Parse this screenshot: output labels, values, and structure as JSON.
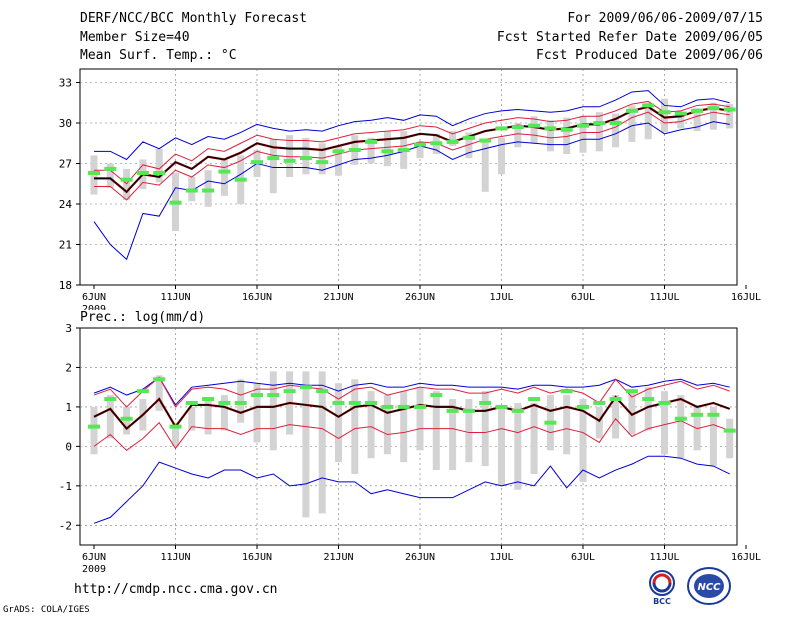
{
  "header": {
    "title": "DERF/NCC/BCC Monthly Forecast",
    "member_size": "Member Size=40",
    "variable": "Mean Surf. Temp.: °C",
    "period": "For 2009/06/06-2009/07/15",
    "refer_date": "Fcst Started Refer Date 2009/06/05",
    "produced_date": "Fcst Produced Date 2009/06/06"
  },
  "footer": {
    "url": "http://cmdp.ncc.cma.gov.cn",
    "grads": "GrADS: COLA/IGES",
    "logo_bcc": "BCC",
    "logo_ncc": "NCC"
  },
  "colors": {
    "bar": "#d3d3d3",
    "obs_dash": "#55e855",
    "mean_line": "#000000",
    "mean_overlay": "#8b0000",
    "spread_line": "#e01e3c",
    "envelope": "#0000d8",
    "grid": "#777777"
  },
  "chart_data": [
    {
      "type": "line",
      "title": "Mean Surf. Temp.: °C",
      "x_tick_labels": [
        "6JUN",
        "11JUN",
        "16JUN",
        "21JUN",
        "26JUN",
        "1JUL",
        "6JUL",
        "11JUL",
        "16JUL"
      ],
      "x_year_label": "2009",
      "ylim": [
        18,
        34
      ],
      "yticks": [
        18,
        21,
        24,
        27,
        30,
        33
      ],
      "days": [
        1,
        2,
        3,
        4,
        5,
        6,
        7,
        8,
        9,
        10,
        11,
        12,
        13,
        14,
        15,
        16,
        17,
        18,
        19,
        20,
        21,
        22,
        23,
        24,
        25,
        26,
        27,
        28,
        29,
        30,
        31,
        32,
        33,
        34,
        35,
        36,
        37,
        38,
        39,
        40
      ],
      "bar_low": [
        24.7,
        25.2,
        24.3,
        25.1,
        25.6,
        22.0,
        24.2,
        23.8,
        24.6,
        24.0,
        26.0,
        24.8,
        26.0,
        26.2,
        26.2,
        26.1,
        26.9,
        27.0,
        26.8,
        26.6,
        27.4,
        27.7,
        28.3,
        27.4,
        24.9,
        26.2,
        28.2,
        28.5,
        27.9,
        27.7,
        27.8,
        27.9,
        28.2,
        28.6,
        28.8,
        29.3,
        29.6,
        29.4,
        29.5,
        29.6
      ],
      "bar_high": [
        27.6,
        27.0,
        26.6,
        27.3,
        28.1,
        26.3,
        26.0,
        26.5,
        27.3,
        27.6,
        28.0,
        28.8,
        29.1,
        28.9,
        28.5,
        28.3,
        29.1,
        28.9,
        29.4,
        29.4,
        28.6,
        29.2,
        29.4,
        29.3,
        28.6,
        28.9,
        30.0,
        30.5,
        30.2,
        30.4,
        30.5,
        30.8,
        30.7,
        31.3,
        31.5,
        31.8,
        30.8,
        31.1,
        31.5,
        31.4
      ],
      "obs": [
        26.3,
        26.6,
        25.8,
        26.3,
        26.3,
        24.1,
        25.0,
        25.0,
        26.4,
        25.8,
        27.1,
        27.4,
        27.2,
        27.4,
        27.1,
        27.9,
        28.0,
        28.6,
        27.9,
        28.0,
        28.4,
        28.5,
        28.6,
        28.9,
        28.7,
        29.6,
        29.7,
        29.8,
        29.6,
        29.5,
        29.8,
        30.0,
        30.0,
        30.9,
        31.3,
        30.8,
        30.7,
        30.9,
        31.1,
        31.0
      ],
      "ens_mean": [
        25.9,
        25.9,
        24.9,
        26.2,
        26.0,
        27.1,
        26.6,
        27.5,
        27.3,
        27.8,
        28.5,
        28.2,
        28.1,
        28.1,
        28.0,
        28.3,
        28.6,
        28.7,
        28.8,
        28.9,
        29.2,
        29.1,
        28.6,
        29.0,
        29.4,
        29.6,
        29.8,
        29.7,
        29.5,
        29.6,
        29.9,
        29.9,
        30.3,
        30.9,
        31.2,
        30.4,
        30.5,
        30.9,
        31.1,
        30.9
      ],
      "upper_spread": [
        26.5,
        26.5,
        25.5,
        26.9,
        26.6,
        27.7,
        27.2,
        28.1,
        27.9,
        28.5,
        29.1,
        28.8,
        28.7,
        28.7,
        28.6,
        28.9,
        29.2,
        29.3,
        29.4,
        29.5,
        29.8,
        29.7,
        29.2,
        29.6,
        30.0,
        30.2,
        30.4,
        30.3,
        30.1,
        30.2,
        30.5,
        30.5,
        30.9,
        31.4,
        31.6,
        30.8,
        30.9,
        31.3,
        31.4,
        31.2
      ],
      "lower_spread": [
        25.3,
        25.3,
        24.3,
        25.6,
        25.4,
        26.5,
        26.0,
        26.9,
        26.7,
        27.2,
        27.9,
        27.6,
        27.5,
        27.5,
        27.4,
        27.7,
        28.0,
        28.1,
        28.2,
        28.3,
        28.6,
        28.5,
        28.0,
        28.4,
        28.8,
        29.0,
        29.2,
        29.1,
        28.9,
        29.0,
        29.3,
        29.3,
        29.7,
        30.4,
        30.8,
        30.0,
        30.1,
        30.5,
        30.8,
        30.6
      ],
      "ens_max": [
        27.9,
        27.9,
        27.3,
        28.6,
        28.1,
        28.9,
        28.4,
        29.0,
        28.8,
        29.3,
        29.9,
        29.6,
        29.4,
        29.5,
        29.4,
        29.8,
        30.1,
        30.2,
        30.4,
        30.2,
        30.6,
        30.5,
        29.8,
        30.3,
        30.7,
        30.9,
        31.0,
        30.9,
        30.8,
        30.9,
        31.2,
        31.2,
        31.7,
        32.3,
        32.4,
        31.3,
        31.2,
        31.7,
        31.8,
        31.5
      ],
      "ens_min": [
        22.7,
        21.0,
        19.9,
        23.3,
        23.1,
        25.2,
        25.0,
        25.7,
        25.5,
        26.2,
        27.0,
        26.7,
        26.7,
        26.7,
        26.5,
        26.9,
        27.3,
        27.4,
        27.6,
        27.9,
        28.3,
        28.0,
        27.3,
        27.8,
        28.1,
        28.4,
        28.6,
        28.5,
        28.4,
        28.4,
        28.8,
        28.8,
        29.2,
        29.8,
        30.0,
        29.2,
        29.5,
        29.7,
        30.1,
        29.9
      ]
    },
    {
      "type": "line",
      "title": "Prec.: log(mm/d)",
      "x_tick_labels": [
        "6JUN",
        "11JUN",
        "16JUN",
        "21JUN",
        "26JUN",
        "1JUL",
        "6JUL",
        "11JUL",
        "16JUL"
      ],
      "x_year_label": "2009",
      "ylim": [
        -2.5,
        3
      ],
      "yticks": [
        -2,
        -1,
        0,
        1,
        2,
        3
      ],
      "days": [
        1,
        2,
        3,
        4,
        5,
        6,
        7,
        8,
        9,
        10,
        11,
        12,
        13,
        14,
        15,
        16,
        17,
        18,
        19,
        20,
        21,
        22,
        23,
        24,
        25,
        26,
        27,
        28,
        29,
        30,
        31,
        32,
        33,
        34,
        35,
        36,
        37,
        38,
        39,
        40
      ],
      "bar_low": [
        -0.2,
        0.2,
        0.3,
        0.4,
        0.9,
        0.0,
        0.4,
        0.3,
        0.4,
        0.6,
        0.1,
        -0.1,
        0.3,
        -1.8,
        -1.7,
        -0.4,
        -0.7,
        -0.3,
        -0.2,
        -0.4,
        -0.1,
        -0.6,
        -0.6,
        -0.4,
        -0.5,
        -1.0,
        -1.1,
        -0.7,
        -0.1,
        -0.2,
        -0.9,
        0.2,
        0.2,
        0.3,
        0.4,
        -0.2,
        -0.3,
        -0.1,
        -0.5,
        -0.3
      ],
      "bar_high": [
        1.0,
        1.3,
        1.0,
        1.2,
        1.8,
        0.6,
        1.0,
        1.2,
        1.3,
        1.7,
        1.6,
        1.9,
        1.9,
        1.9,
        1.9,
        1.6,
        1.7,
        1.4,
        1.3,
        1.4,
        1.5,
        1.4,
        1.2,
        1.2,
        1.4,
        1.0,
        1.1,
        1.1,
        1.3,
        1.3,
        1.2,
        1.0,
        1.3,
        1.4,
        1.5,
        1.4,
        1.3,
        1.0,
        1.0,
        0.7
      ],
      "obs": [
        0.5,
        1.2,
        0.7,
        1.4,
        1.7,
        0.5,
        1.1,
        1.2,
        1.1,
        1.1,
        1.3,
        1.3,
        1.4,
        1.5,
        1.4,
        1.1,
        1.1,
        1.1,
        1.0,
        1.0,
        1.0,
        1.3,
        0.9,
        0.9,
        1.1,
        1.0,
        0.9,
        1.2,
        0.6,
        1.4,
        1.0,
        1.1,
        1.2,
        1.4,
        1.2,
        1.1,
        0.7,
        0.8,
        0.8,
        0.4
      ],
      "ens_mean": [
        0.75,
        0.95,
        0.45,
        0.8,
        1.2,
        0.5,
        1.05,
        1.05,
        1.0,
        0.85,
        1.0,
        1.0,
        1.1,
        1.05,
        1.0,
        0.75,
        1.0,
        1.05,
        0.85,
        0.95,
        1.05,
        1.0,
        1.0,
        0.9,
        0.9,
        1.0,
        0.9,
        1.05,
        0.9,
        1.0,
        0.9,
        0.65,
        1.25,
        0.8,
        1.0,
        1.1,
        1.2,
        1.0,
        1.1,
        0.95
      ],
      "upper_spread": [
        1.3,
        1.45,
        1.0,
        1.4,
        1.75,
        1.0,
        1.45,
        1.5,
        1.45,
        1.3,
        1.45,
        1.45,
        1.55,
        1.5,
        1.45,
        1.2,
        1.45,
        1.5,
        1.3,
        1.4,
        1.5,
        1.45,
        1.45,
        1.35,
        1.35,
        1.45,
        1.35,
        1.5,
        1.35,
        1.45,
        1.35,
        1.1,
        1.7,
        1.25,
        1.45,
        1.55,
        1.65,
        1.45,
        1.55,
        1.4
      ],
      "lower_spread": [
        0.0,
        0.3,
        -0.1,
        0.2,
        0.6,
        -0.05,
        0.5,
        0.45,
        0.45,
        0.3,
        0.45,
        0.45,
        0.55,
        0.5,
        0.45,
        0.2,
        0.45,
        0.5,
        0.3,
        0.35,
        0.45,
        0.45,
        0.45,
        0.35,
        0.35,
        0.45,
        0.35,
        0.5,
        0.35,
        0.45,
        0.35,
        0.1,
        0.7,
        0.25,
        0.45,
        0.55,
        0.65,
        0.45,
        0.55,
        0.4
      ],
      "ens_max": [
        1.35,
        1.5,
        1.3,
        1.45,
        1.75,
        1.05,
        1.5,
        1.55,
        1.6,
        1.65,
        1.6,
        1.55,
        1.6,
        1.55,
        1.55,
        1.4,
        1.55,
        1.6,
        1.5,
        1.5,
        1.6,
        1.55,
        1.55,
        1.5,
        1.5,
        1.5,
        1.45,
        1.55,
        1.55,
        1.5,
        1.5,
        1.55,
        1.7,
        1.5,
        1.55,
        1.65,
        1.7,
        1.55,
        1.6,
        1.5
      ],
      "ens_min": [
        -1.95,
        -1.8,
        -1.4,
        -1.0,
        -0.4,
        -0.55,
        -0.7,
        -0.8,
        -0.6,
        -0.6,
        -0.8,
        -0.7,
        -1.0,
        -0.95,
        -0.8,
        -0.9,
        -0.9,
        -1.2,
        -1.1,
        -1.2,
        -1.3,
        -1.3,
        -1.3,
        -1.1,
        -0.9,
        -1.0,
        -0.9,
        -1.0,
        -0.5,
        -1.05,
        -0.6,
        -0.8,
        -0.6,
        -0.45,
        -0.25,
        -0.25,
        -0.3,
        -0.45,
        -0.5,
        -0.7
      ]
    }
  ]
}
